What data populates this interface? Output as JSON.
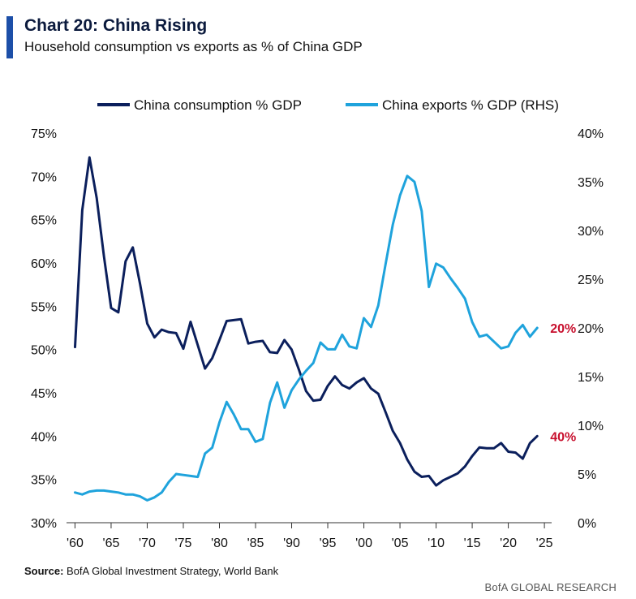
{
  "header": {
    "title": "Chart 20: China Rising",
    "subtitle": "Household consumption vs exports as % of China GDP"
  },
  "footer": {
    "source_label": "Source:",
    "source_text": " BofA Global Investment Strategy, World Bank",
    "brand": "BofA GLOBAL RESEARCH"
  },
  "chart_data": {
    "type": "line",
    "legend_position": "top",
    "grid": false,
    "x_ticks": [
      "'60",
      "'65",
      "'70",
      "'75",
      "'80",
      "'85",
      "'90",
      "'95",
      "'00",
      "'05",
      "'10",
      "'15",
      "'20",
      "'25"
    ],
    "xlim": [
      1959.5,
      2026
    ],
    "left_axis": {
      "ylim": [
        30,
        75
      ],
      "ticks": [
        "30%",
        "35%",
        "40%",
        "45%",
        "50%",
        "55%",
        "60%",
        "65%",
        "70%",
        "75%"
      ]
    },
    "right_axis": {
      "ylim": [
        0,
        40
      ],
      "ticks": [
        "0%",
        "5%",
        "10%",
        "15%",
        "20%",
        "25%",
        "30%",
        "35%",
        "40%"
      ]
    },
    "series": [
      {
        "name": "China consumption % GDP",
        "axis": "left",
        "color": "#0b1f5c",
        "end_label": "40%",
        "x": [
          1960,
          1961,
          1962,
          1963,
          1964,
          1965,
          1966,
          1967,
          1968,
          1969,
          1970,
          1971,
          1972,
          1973,
          1974,
          1975,
          1976,
          1977,
          1978,
          1979,
          1980,
          1981,
          1982,
          1983,
          1984,
          1985,
          1986,
          1987,
          1988,
          1989,
          1990,
          1991,
          1992,
          1993,
          1994,
          1995,
          1996,
          1997,
          1998,
          1999,
          2000,
          2001,
          2002,
          2003,
          2004,
          2005,
          2006,
          2007,
          2008,
          2009,
          2010,
          2011,
          2012,
          2013,
          2014,
          2015,
          2016,
          2017,
          2018,
          2019,
          2020,
          2021,
          2022,
          2023,
          2024
        ],
        "values": [
          50.3,
          66.1,
          72.2,
          67.5,
          60.8,
          54.8,
          54.3,
          60.2,
          61.8,
          57.6,
          53.0,
          51.4,
          52.3,
          52.0,
          51.9,
          50.1,
          53.2,
          50.5,
          47.8,
          49.0,
          51.1,
          53.3,
          53.4,
          53.5,
          50.7,
          50.9,
          51.0,
          49.7,
          49.6,
          51.1,
          50.0,
          47.7,
          45.2,
          44.1,
          44.2,
          45.8,
          46.9,
          45.9,
          45.5,
          46.2,
          46.7,
          45.5,
          44.9,
          42.8,
          40.6,
          39.2,
          37.3,
          35.9,
          35.3,
          35.4,
          34.3,
          34.9,
          35.3,
          35.7,
          36.5,
          37.7,
          38.7,
          38.6,
          38.6,
          39.2,
          38.2,
          38.1,
          37.4,
          39.2,
          40.0
        ]
      },
      {
        "name": "China exports % GDP (RHS)",
        "axis": "right",
        "color": "#1fa3dc",
        "end_label": "20%",
        "x": [
          1960,
          1961,
          1962,
          1963,
          1964,
          1965,
          1966,
          1967,
          1968,
          1969,
          1970,
          1971,
          1972,
          1973,
          1974,
          1975,
          1976,
          1977,
          1978,
          1979,
          1980,
          1981,
          1982,
          1983,
          1984,
          1985,
          1986,
          1987,
          1988,
          1989,
          1990,
          1991,
          1992,
          1993,
          1994,
          1995,
          1996,
          1997,
          1998,
          1999,
          2000,
          2001,
          2002,
          2003,
          2004,
          2005,
          2006,
          2007,
          2008,
          2009,
          2010,
          2011,
          2012,
          2013,
          2014,
          2015,
          2016,
          2017,
          2018,
          2019,
          2020,
          2021,
          2022,
          2023,
          2024
        ],
        "values": [
          3.1,
          2.9,
          3.2,
          3.3,
          3.3,
          3.2,
          3.1,
          2.9,
          2.9,
          2.7,
          2.3,
          2.6,
          3.1,
          4.2,
          5.0,
          4.9,
          4.8,
          4.7,
          7.1,
          7.7,
          10.3,
          12.4,
          11.1,
          9.6,
          9.6,
          8.3,
          8.6,
          12.3,
          14.4,
          11.8,
          13.6,
          14.7,
          15.6,
          16.4,
          18.5,
          17.8,
          17.8,
          19.3,
          18.1,
          17.9,
          21.0,
          20.1,
          22.3,
          26.5,
          30.6,
          33.6,
          35.6,
          35.0,
          32.0,
          24.2,
          26.6,
          26.2,
          25.1,
          24.1,
          23.0,
          20.6,
          19.1,
          19.3,
          18.6,
          17.9,
          18.1,
          19.5,
          20.3,
          19.1,
          20.0
        ]
      }
    ]
  }
}
